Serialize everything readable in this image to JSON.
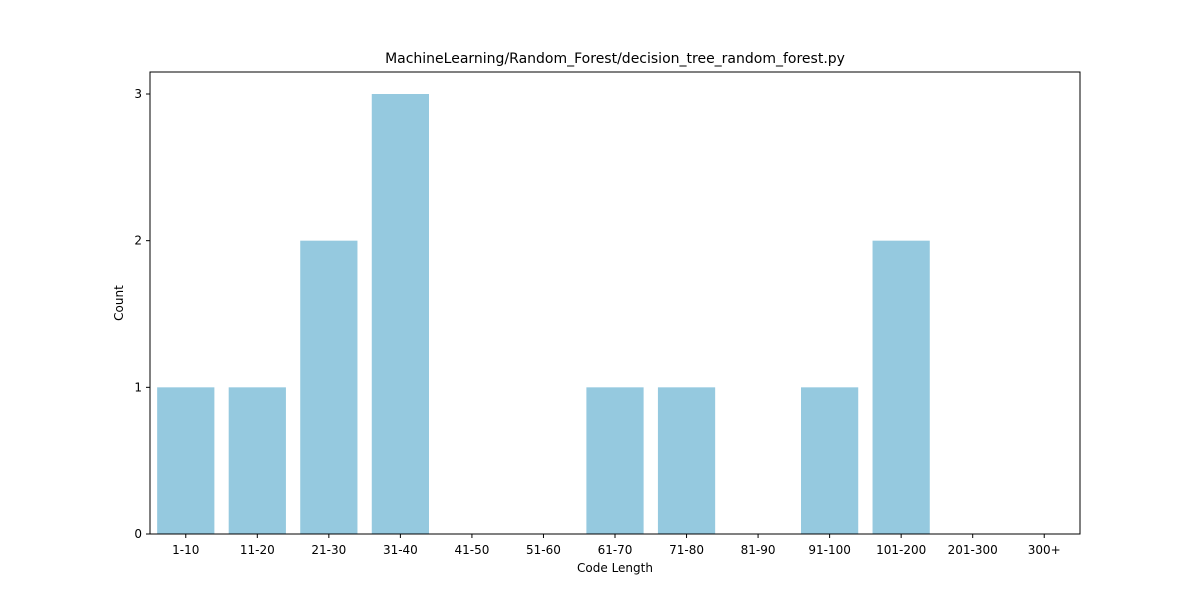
{
  "chart_data": {
    "type": "bar",
    "title": "MachineLearning/Random_Forest/decision_tree_random_forest.py",
    "xlabel": "Code Length",
    "ylabel": "Count",
    "categories": [
      "1-10",
      "11-20",
      "21-30",
      "31-40",
      "41-50",
      "51-60",
      "61-70",
      "71-80",
      "81-90",
      "91-100",
      "101-200",
      "201-300",
      "300+"
    ],
    "values": [
      1,
      1,
      2,
      3,
      0,
      0,
      1,
      1,
      0,
      1,
      2,
      0,
      0
    ],
    "ylim": [
      0,
      3.15
    ],
    "yticks": [
      0,
      1,
      2,
      3
    ],
    "grid": false,
    "bar_color": "#95c9df"
  }
}
